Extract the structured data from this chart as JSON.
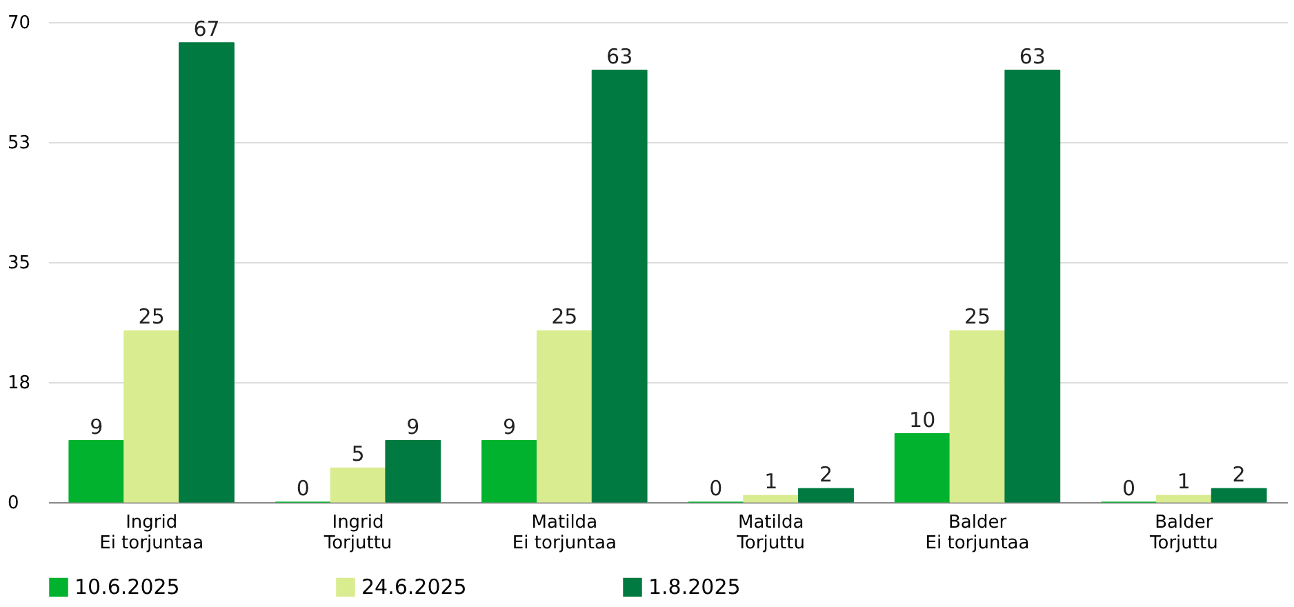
{
  "chart_data": {
    "type": "bar",
    "categories": [
      "Ingrid\nEi torjuntaa",
      "Ingrid\nTorjuttu",
      "Matilda\nEi torjuntaa",
      "Matilda\nTorjuttu",
      "Balder\nEi torjuntaa",
      "Balder\nTorjuttu"
    ],
    "series": [
      {
        "name": "10.6.2025",
        "color": "#00b22d",
        "values": [
          9,
          0,
          9,
          0,
          10,
          0
        ]
      },
      {
        "name": "24.6.2025",
        "color": "#d9ec8f",
        "values": [
          25,
          5,
          25,
          1,
          25,
          1
        ]
      },
      {
        "name": "1.8.2025",
        "color": "#007a40",
        "values": [
          67,
          9,
          63,
          2,
          63,
          2
        ]
      }
    ],
    "ylim": [
      0,
      70
    ],
    "yticks": [
      0,
      {
        "value": 17.5,
        "label": "18"
      },
      35,
      {
        "value": 52.5,
        "label": "53"
      },
      70
    ],
    "grid": "y",
    "legend": "bottom left",
    "data_labels": true
  }
}
